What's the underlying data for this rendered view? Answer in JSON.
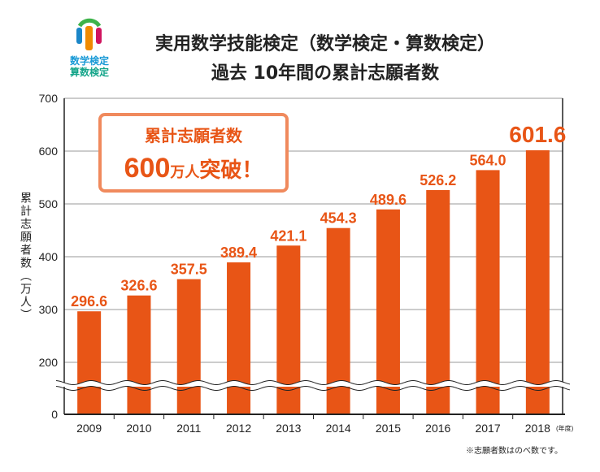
{
  "logo": {
    "line1": "数学検定",
    "line2": "算数検定"
  },
  "chart_data": {
    "type": "bar",
    "title": "実用数学技能検定（数学検定・算数検定）",
    "subtitle": "過去 10年間の累計志願者数",
    "ylabel": "累計志願者数（万人）",
    "xlabel_suffix": "(年度)",
    "categories": [
      "2009",
      "2010",
      "2011",
      "2012",
      "2013",
      "2014",
      "2015",
      "2016",
      "2017",
      "2018"
    ],
    "values": [
      296.6,
      326.6,
      357.5,
      389.4,
      421.1,
      454.3,
      489.6,
      526.2,
      564.0,
      601.6
    ],
    "data_labels": [
      "296.6",
      "326.6",
      "357.5",
      "389.4",
      "421.1",
      "454.3",
      "489.6",
      "526.2",
      "564.0",
      "601.6"
    ],
    "yticks": [
      0,
      200,
      300,
      400,
      500,
      600,
      700
    ],
    "ylim": [
      0,
      700
    ],
    "axis_break": "between 0 and 200",
    "grid": true,
    "bar_color": "#e85516",
    "callout": {
      "line1": "累計志願者数",
      "line2_num": "600",
      "line2_unit": "万人",
      "line2_tail": "突破！"
    },
    "footnote": "※志願者数はのべ数です。"
  }
}
